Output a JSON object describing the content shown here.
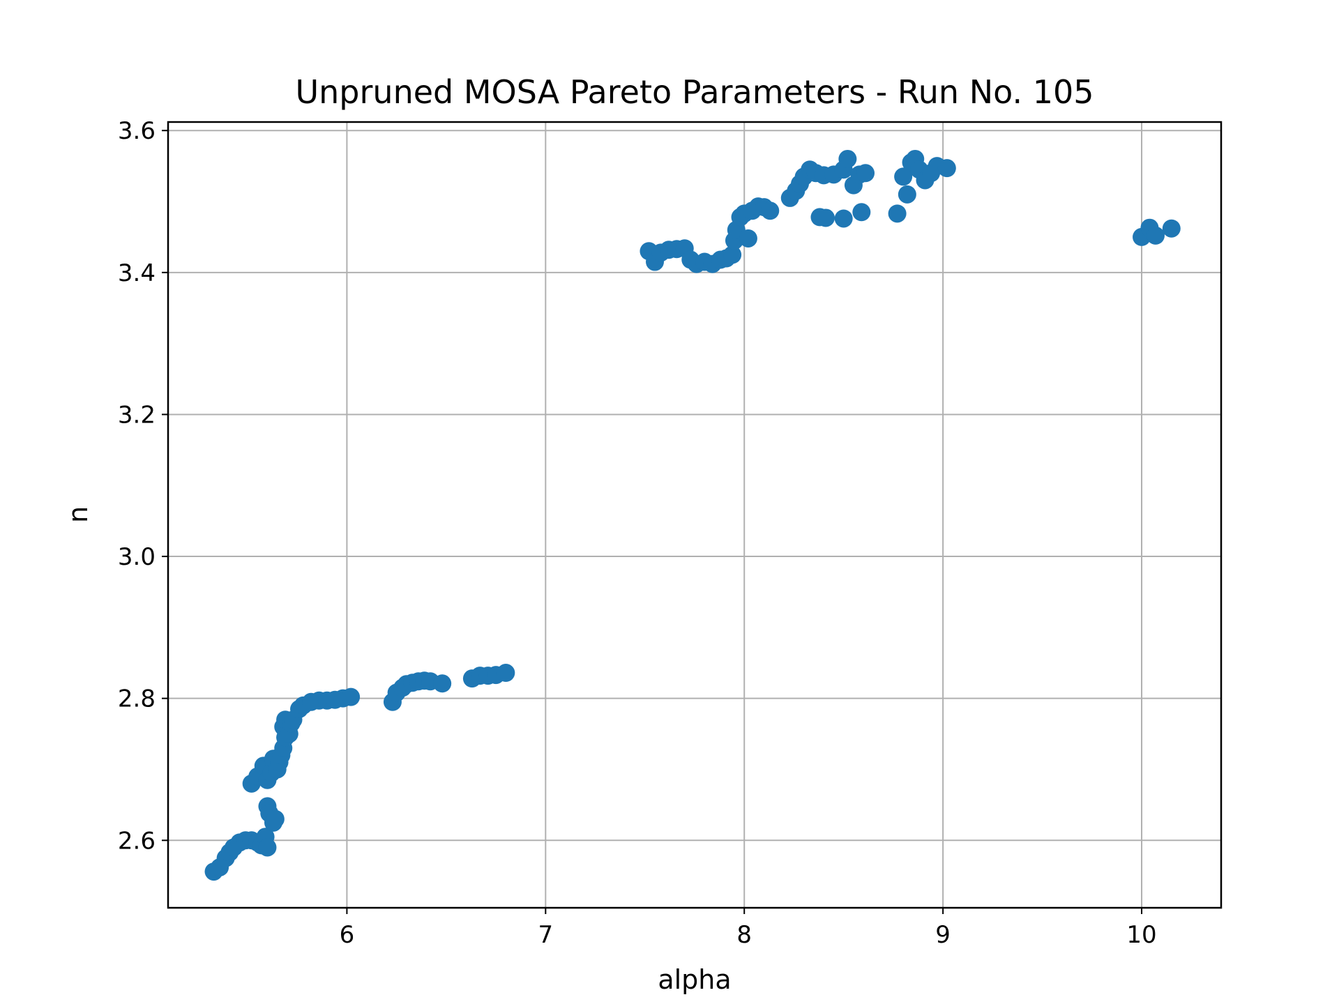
{
  "chart_data": {
    "type": "scatter",
    "title": "Unpruned MOSA Pareto Parameters - Run No. 105",
    "xlabel": "alpha",
    "ylabel": "n",
    "xlim": [
      5.1,
      10.4
    ],
    "ylim": [
      2.505,
      3.612
    ],
    "xticks": [
      6,
      7,
      8,
      9,
      10
    ],
    "yticks": [
      2.6,
      2.8,
      3.0,
      3.2,
      3.4,
      3.6
    ],
    "xtick_labels": [
      "6",
      "7",
      "8",
      "9",
      "10"
    ],
    "ytick_labels": [
      "2.6",
      "2.8",
      "3.0",
      "3.2",
      "3.4",
      "3.6"
    ],
    "grid": true,
    "legend": "none",
    "marker_color": "#1f77b4",
    "series": [
      {
        "x": [
          5.33,
          5.36,
          5.39,
          5.41,
          5.43,
          5.46,
          5.49,
          5.52,
          5.55,
          5.57,
          5.59,
          5.6,
          5.52,
          5.55,
          5.58,
          5.6,
          5.62,
          5.63,
          5.6,
          5.61,
          5.63,
          5.64,
          5.65,
          5.66,
          5.67,
          5.68,
          5.69,
          5.7,
          5.68,
          5.69,
          5.7,
          5.71,
          5.72,
          5.73,
          5.76,
          5.78,
          5.82,
          5.86,
          5.9,
          5.94,
          5.98,
          6.02,
          6.23,
          6.25,
          6.28,
          6.3,
          6.33,
          6.36,
          6.39,
          6.42,
          6.48,
          6.63,
          6.67,
          6.71,
          6.75,
          6.8
        ],
        "y": [
          2.556,
          2.562,
          2.575,
          2.583,
          2.59,
          2.597,
          2.6,
          2.6,
          2.597,
          2.593,
          2.605,
          2.59,
          2.68,
          2.69,
          2.705,
          2.685,
          2.695,
          2.715,
          2.648,
          2.638,
          2.625,
          2.63,
          2.7,
          2.71,
          2.72,
          2.73,
          2.745,
          2.755,
          2.76,
          2.77,
          2.768,
          2.75,
          2.765,
          2.77,
          2.785,
          2.79,
          2.795,
          2.797,
          2.797,
          2.798,
          2.8,
          2.802,
          2.795,
          2.808,
          2.815,
          2.82,
          2.822,
          2.824,
          2.825,
          2.824,
          2.821,
          2.828,
          2.832,
          2.832,
          2.833,
          2.836
        ]
      },
      {
        "x": [
          7.52,
          7.55,
          7.58,
          7.62,
          7.66,
          7.7,
          7.73,
          7.76,
          7.8,
          7.84,
          7.88,
          7.91,
          7.94,
          7.95,
          7.96,
          7.98,
          8.0,
          8.02,
          8.04,
          8.07,
          8.1,
          8.13,
          8.23,
          8.26,
          8.28,
          8.3,
          8.33,
          8.36,
          8.4,
          8.45,
          8.5,
          8.52,
          8.55,
          8.58,
          8.61,
          8.38,
          8.41,
          8.5,
          8.59,
          8.77,
          8.8,
          8.82,
          8.84,
          8.86,
          8.88,
          8.91,
          8.94,
          8.97,
          9.02,
          10.0,
          10.04,
          10.07,
          10.15
        ],
        "y": [
          3.43,
          3.415,
          3.428,
          3.432,
          3.433,
          3.434,
          3.418,
          3.412,
          3.415,
          3.412,
          3.418,
          3.42,
          3.425,
          3.445,
          3.46,
          3.478,
          3.483,
          3.448,
          3.487,
          3.493,
          3.492,
          3.487,
          3.505,
          3.515,
          3.525,
          3.535,
          3.545,
          3.54,
          3.537,
          3.538,
          3.545,
          3.56,
          3.523,
          3.538,
          3.54,
          3.478,
          3.477,
          3.476,
          3.485,
          3.483,
          3.535,
          3.51,
          3.555,
          3.56,
          3.545,
          3.53,
          3.54,
          3.55,
          3.547,
          3.45,
          3.463,
          3.452,
          3.462
        ]
      }
    ]
  }
}
